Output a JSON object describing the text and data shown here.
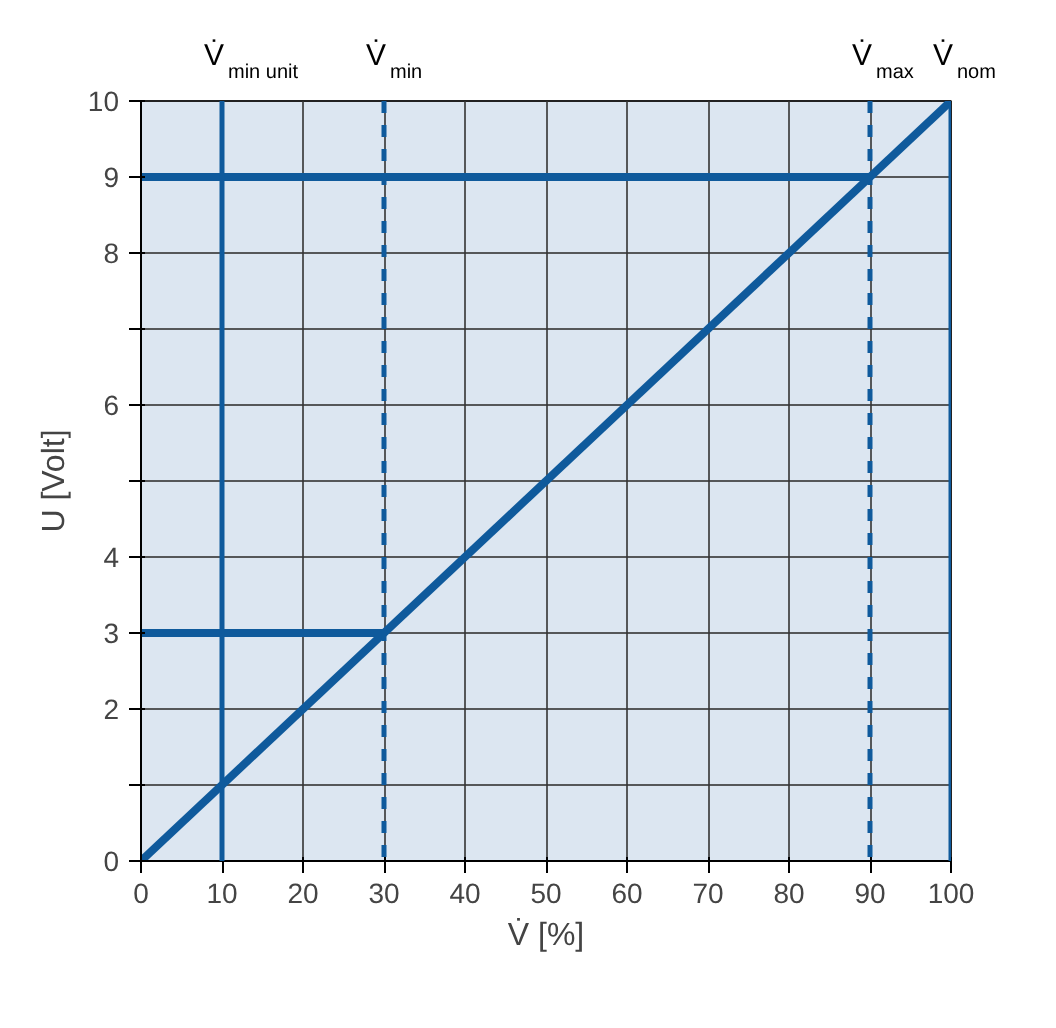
{
  "chart_data": {
    "type": "line",
    "xlabel": "V̇ [%]",
    "ylabel": "U [Volt]",
    "xlim": [
      0,
      100
    ],
    "ylim": [
      0,
      10
    ],
    "xticks": [
      0,
      10,
      20,
      30,
      40,
      50,
      60,
      70,
      80,
      90,
      100
    ],
    "yticks": [
      0,
      {
        "value": 1,
        "label": null
      },
      2,
      3,
      4,
      {
        "value": 5,
        "label": null
      },
      6,
      {
        "value": 7,
        "label": null
      },
      8,
      9,
      10
    ],
    "grid": true,
    "series": [
      {
        "color": "#0f5a9c",
        "x": [
          0,
          100
        ],
        "values": [
          0,
          10
        ],
        "line_style": "solid"
      },
      {
        "color": "#0f5a9c",
        "x": [
          0,
          30
        ],
        "values": [
          3,
          3
        ],
        "line_style": "solid"
      },
      {
        "color": "#0f5a9c",
        "x": [
          0,
          90
        ],
        "values": [
          9,
          9
        ],
        "line_style": "solid"
      }
    ],
    "ref_lines": [
      {
        "axis": "x",
        "value": 10,
        "label": "V̇$_{min unit}$",
        "color": "#0f5a9c",
        "line_style": "solid"
      },
      {
        "axis": "x",
        "value": 30,
        "label": "V̇$_{min}$",
        "color": "#0f5a9c",
        "line_style": "dashed"
      },
      {
        "axis": "x",
        "value": 90,
        "label": "V̇$_{max}$",
        "color": "#0f5a9c",
        "line_style": "dashed"
      },
      {
        "axis": "x",
        "value": 100,
        "label": "V̇$_{nom}$",
        "color": "#0f5a9c",
        "line_style": "solid"
      }
    ]
  }
}
